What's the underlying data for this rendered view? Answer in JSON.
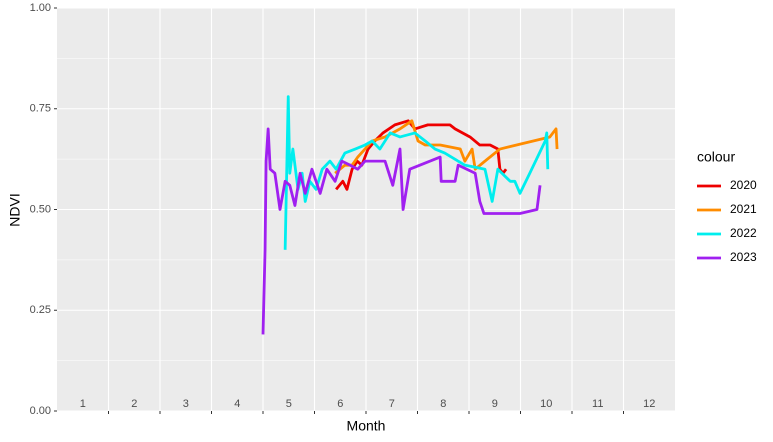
{
  "chart_data": {
    "type": "line",
    "xlabel": "Month",
    "ylabel": "NDVI",
    "legend_title": "colour",
    "xlim": [
      0,
      12
    ],
    "ylim": [
      0,
      1
    ],
    "xticks": [
      {
        "value": 0.5,
        "label": "1"
      },
      {
        "value": 1.5,
        "label": "2"
      },
      {
        "value": 2.5,
        "label": "3"
      },
      {
        "value": 3.5,
        "label": "4"
      },
      {
        "value": 4.5,
        "label": "5"
      },
      {
        "value": 5.5,
        "label": "6"
      },
      {
        "value": 6.5,
        "label": "7"
      },
      {
        "value": 7.5,
        "label": "8"
      },
      {
        "value": 8.5,
        "label": "9"
      },
      {
        "value": 9.5,
        "label": "10"
      },
      {
        "value": 10.5,
        "label": "11"
      },
      {
        "value": 11.5,
        "label": "12"
      }
    ],
    "yticks": [
      {
        "value": 0,
        "label": "0.00"
      },
      0.25,
      {
        "value": 0.5,
        "label": "0.50"
      },
      0.75,
      {
        "value": 1,
        "label": "1.00"
      }
    ],
    "grid": true,
    "legend": "right",
    "series": [
      {
        "name": "2020",
        "color": "#ee0000",
        "x": [
          5.42,
          5.55,
          5.63,
          5.73,
          5.83,
          5.92,
          6.04,
          6.17,
          6.33,
          6.56,
          6.82,
          6.95,
          7.2,
          7.63,
          7.73,
          8.02,
          8.21,
          8.41,
          8.56,
          8.6,
          8.66,
          8.72
        ],
        "values": [
          0.55,
          0.57,
          0.55,
          0.6,
          0.62,
          0.61,
          0.65,
          0.67,
          0.69,
          0.71,
          0.72,
          0.7,
          0.71,
          0.71,
          0.7,
          0.68,
          0.66,
          0.66,
          0.65,
          0.6,
          0.59,
          0.6
        ]
      },
      {
        "name": "2021",
        "color": "#ff8c00",
        "x": [
          5.4,
          5.59,
          5.73,
          5.84,
          5.98,
          6.12,
          6.37,
          6.66,
          6.89,
          7.01,
          7.15,
          7.44,
          7.83,
          7.92,
          8.06,
          8.12,
          8.31,
          8.6,
          9.57,
          9.69,
          9.71
        ],
        "values": [
          0.59,
          0.61,
          0.61,
          0.63,
          0.65,
          0.67,
          0.68,
          0.7,
          0.72,
          0.67,
          0.66,
          0.66,
          0.65,
          0.62,
          0.65,
          0.6,
          0.62,
          0.65,
          0.68,
          0.7,
          0.65
        ]
      },
      {
        "name": "2022",
        "color": "#00eeee",
        "x": [
          4.43,
          4.49,
          4.52,
          4.58,
          4.68,
          4.76,
          4.82,
          4.91,
          5.03,
          5.15,
          5.3,
          5.42,
          5.59,
          5.79,
          5.98,
          6.12,
          6.27,
          6.47,
          6.66,
          6.95,
          7.15,
          7.34,
          7.53,
          7.92,
          8.31,
          8.45,
          8.56,
          8.8,
          8.89,
          8.99,
          9.18,
          9.48,
          9.51,
          9.53
        ],
        "values": [
          0.4,
          0.78,
          0.59,
          0.65,
          0.55,
          0.59,
          0.52,
          0.57,
          0.55,
          0.6,
          0.62,
          0.6,
          0.64,
          0.65,
          0.66,
          0.67,
          0.65,
          0.69,
          0.68,
          0.69,
          0.67,
          0.65,
          0.64,
          0.61,
          0.6,
          0.52,
          0.6,
          0.57,
          0.57,
          0.54,
          0.59,
          0.67,
          0.69,
          0.6
        ]
      },
      {
        "name": "2023",
        "color": "#a020f0",
        "x": [
          4.0,
          4.04,
          4.06,
          4.1,
          4.14,
          4.23,
          4.33,
          4.43,
          4.52,
          4.62,
          4.72,
          4.82,
          4.95,
          5.11,
          5.24,
          5.4,
          5.53,
          5.69,
          5.84,
          5.98,
          6.37,
          6.52,
          6.66,
          6.72,
          6.85,
          7.44,
          7.46,
          7.73,
          7.79,
          8.12,
          8.21,
          8.29,
          8.99,
          9.32,
          9.38
        ],
        "values": [
          0.19,
          0.4,
          0.62,
          0.7,
          0.6,
          0.59,
          0.5,
          0.57,
          0.56,
          0.51,
          0.59,
          0.54,
          0.6,
          0.54,
          0.6,
          0.57,
          0.62,
          0.61,
          0.6,
          0.62,
          0.62,
          0.56,
          0.65,
          0.5,
          0.6,
          0.63,
          0.57,
          0.57,
          0.61,
          0.59,
          0.52,
          0.49,
          0.49,
          0.5,
          0.56
        ]
      }
    ]
  }
}
